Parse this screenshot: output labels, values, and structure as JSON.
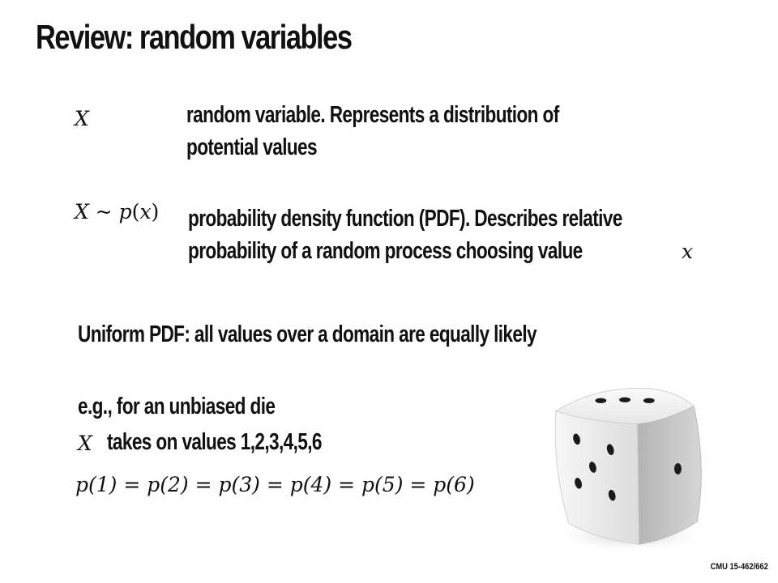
{
  "slide": {
    "title": "Review: random variables",
    "definitions": [
      {
        "symbol": "X",
        "line1": "random variable. Represents a distribution of",
        "line2": "potential values"
      },
      {
        "symbol_var": "X",
        "symbol_rel": " ~ ",
        "symbol_fn": "p",
        "symbol_arg": "(",
        "symbol_argvar": "x",
        "symbol_close": ")",
        "line1": "probability density function (PDF). Describes relative",
        "line2": "probability of a random process choosing value",
        "line2_var": "x"
      }
    ],
    "uniform": "Uniform PDF: all values over a domain are equally likely",
    "example": {
      "line1": "e.g., for an unbiased die",
      "var": "X",
      "line2": "takes on values 1,2,3,4,5,6",
      "equation": "p(1) = p(2) = p(3) = p(4) = p(5) = p(6)"
    },
    "footer": "CMU 15-462/662",
    "die_image": "die-illustration"
  }
}
